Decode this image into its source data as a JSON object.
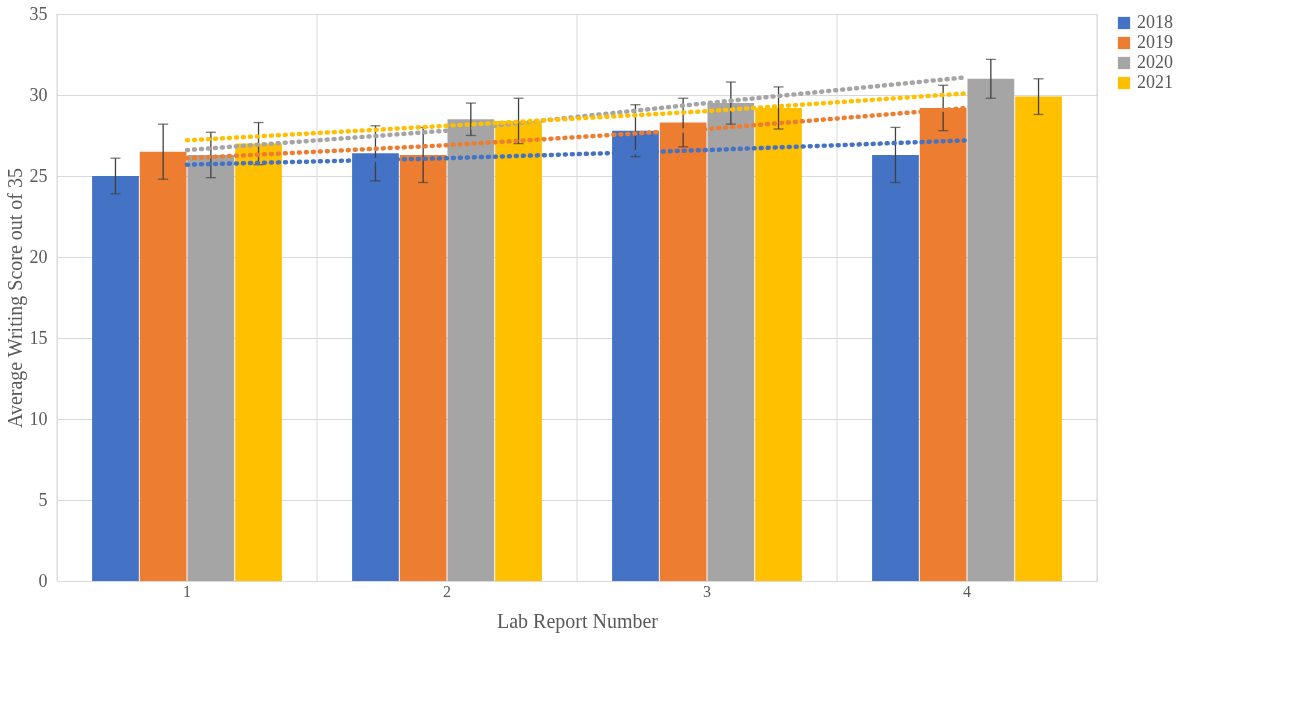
{
  "chart_data": {
    "type": "bar",
    "xlabel": "Lab Report Number",
    "ylabel": "Average Writing Score out of 35",
    "categories": [
      "1",
      "2",
      "3",
      "4"
    ],
    "series": [
      {
        "name": "2018",
        "color": "#4472c4",
        "values": [
          25.0,
          26.4,
          27.8,
          26.3
        ],
        "errors": [
          1.1,
          1.7,
          1.6,
          1.7
        ]
      },
      {
        "name": "2019",
        "color": "#ed7d31",
        "values": [
          26.5,
          26.3,
          28.3,
          29.2
        ],
        "errors": [
          1.7,
          1.7,
          1.5,
          1.4
        ]
      },
      {
        "name": "2020",
        "color": "#a5a5a5",
        "values": [
          26.3,
          28.5,
          29.5,
          31.0
        ],
        "errors": [
          1.4,
          1.0,
          1.3,
          1.2
        ]
      },
      {
        "name": "2021",
        "color": "#ffc000",
        "values": [
          27.0,
          28.4,
          29.2,
          29.9
        ],
        "errors": [
          1.3,
          1.4,
          1.3,
          1.1
        ]
      },
      {
        "type": "line",
        "color": "#4472c4",
        "line_style": "dotted",
        "x": [
          "1",
          "2",
          "3",
          "4"
        ],
        "values": [
          25.7,
          26.1,
          26.6,
          27.2
        ]
      },
      {
        "type": "line",
        "color": "#ed7d31",
        "line_style": "dotted",
        "x": [
          "1",
          "2",
          "3",
          "4"
        ],
        "values": [
          26.1,
          26.9,
          27.9,
          29.2
        ]
      },
      {
        "type": "line",
        "color": "#a5a5a5",
        "line_style": "dotted",
        "x": [
          "1",
          "2",
          "3",
          "4"
        ],
        "values": [
          26.6,
          27.8,
          29.5,
          31.1
        ]
      },
      {
        "type": "line",
        "color": "#ffc000",
        "line_style": "dotted",
        "x": [
          "1",
          "2",
          "3",
          "4"
        ],
        "values": [
          27.2,
          28.1,
          29.0,
          30.1
        ]
      }
    ],
    "ylim": [
      0,
      35
    ],
    "yticks": [
      0,
      5,
      10,
      15,
      20,
      25,
      30,
      35
    ],
    "grid": true,
    "legend": "right"
  }
}
